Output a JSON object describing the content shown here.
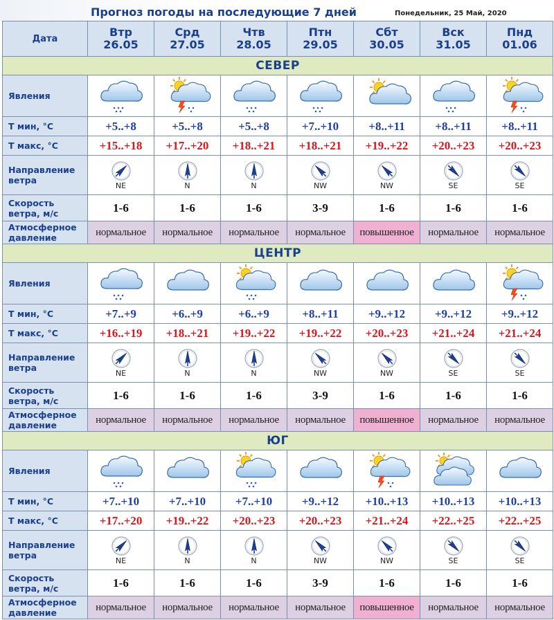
{
  "title": "Прогноз погоды на последующие 7 дней",
  "current_date": "Понедельник, 25 Май, 2020",
  "header_label": "Дата",
  "days": [
    {
      "name": "Втр",
      "date": "26.05"
    },
    {
      "name": "Срд",
      "date": "27.05"
    },
    {
      "name": "Чтв",
      "date": "28.05"
    },
    {
      "name": "Птн",
      "date": "29.05"
    },
    {
      "name": "Сбт",
      "date": "30.05"
    },
    {
      "name": "Вск",
      "date": "31.05"
    },
    {
      "name": "Пнд",
      "date": "01.06"
    }
  ],
  "row_labels": {
    "phenomena": "Явления",
    "tmin": "Т мин, °C",
    "tmax": "Т макс, °C",
    "wind_dir_1": "Направление",
    "wind_dir_2": "ветра",
    "wind_speed_1": "Скорость",
    "wind_speed_2": "ветра, м/с",
    "pressure_1": "Атмосферное",
    "pressure_2": "давление"
  },
  "colors": {
    "label_bg": "#d6e2ef",
    "region_bg": "#dfeac0",
    "tmin": "#1c3fa8",
    "tmax": "#e0141a",
    "pressure_normal": "#ddd0e3",
    "pressure_high": "#efb0d2"
  },
  "regions": [
    {
      "name": "СЕВЕР",
      "icons": [
        "cloud-rain-icon",
        "sun-cloud-thunder-icon",
        "cloud-rain-icon",
        "cloud-rain-icon",
        "sun-cloud-icon",
        "cloud-rain-icon",
        "sun-cloud-thunder-icon"
      ],
      "tmin": [
        "+5..+8",
        "+5..+8",
        "+5..+8",
        "+7..+10",
        "+8..+11",
        "+8..+11",
        "+8..+11"
      ],
      "tmax": [
        "+15..+18",
        "+17..+20",
        "+18..+21",
        "+18..+21",
        "+19..+22",
        "+20..+23",
        "+20..+23"
      ],
      "wind_dir": [
        "NE",
        "N",
        "N",
        "NW",
        "NW",
        "SE",
        "SE"
      ],
      "wind_speed": [
        "1-6",
        "1-6",
        "1-6",
        "3-9",
        "1-6",
        "1-6",
        "1-6"
      ],
      "pressure": [
        "нормальное",
        "нормальное",
        "нормальное",
        "нормальное",
        "повышенное",
        "нормальное",
        "нормальное"
      ]
    },
    {
      "name": "ЦЕНТР",
      "icons": [
        "cloud-rain-icon",
        "cloud-icon",
        "sun-cloud-rain-icon",
        "cloud-icon",
        "cloud-icon",
        "cloud-icon",
        "sun-cloud-thunder-icon"
      ],
      "tmin": [
        "+7..+9",
        "+6..+9",
        "+6..+9",
        "+8..+11",
        "+9..+12",
        "+9..+12",
        "+9..+12"
      ],
      "tmax": [
        "+16..+19",
        "+18..+21",
        "+19..+22",
        "+19..+22",
        "+20..+23",
        "+21..+24",
        "+21..+24"
      ],
      "wind_dir": [
        "NE",
        "N",
        "N",
        "NW",
        "NW",
        "SE",
        "SE"
      ],
      "wind_speed": [
        "1-6",
        "1-6",
        "1-6",
        "3-9",
        "1-6",
        "1-6",
        "1-6"
      ],
      "pressure": [
        "нормальное",
        "нормальное",
        "нормальное",
        "нормальное",
        "повышенное",
        "нормальное",
        "нормальное"
      ]
    },
    {
      "name": "ЮГ",
      "icons": [
        "cloud-rain-icon",
        "cloud-icon",
        "sun-cloud-rain-icon",
        "cloud-icon",
        "sun-cloud-thunder-icon",
        "double-cloud-icon",
        "cloud-icon"
      ],
      "tmin": [
        "+7..+10",
        "+7..+10",
        "+7..+10",
        "+9..+12",
        "+10..+13",
        "+10..+13",
        "+10..+13"
      ],
      "tmax": [
        "+17..+20",
        "+19..+22",
        "+20..+23",
        "+20..+23",
        "+21..+24",
        "+22..+25",
        "+22..+25"
      ],
      "wind_dir": [
        "NE",
        "N",
        "N",
        "NW",
        "NW",
        "SE",
        "SE"
      ],
      "wind_speed": [
        "1-6",
        "1-6",
        "1-6",
        "3-9",
        "1-6",
        "1-6",
        "1-6"
      ],
      "pressure": [
        "нормальное",
        "нормальное",
        "нормальное",
        "нормальное",
        "повышенное",
        "нормальное",
        "нормальное"
      ]
    }
  ]
}
